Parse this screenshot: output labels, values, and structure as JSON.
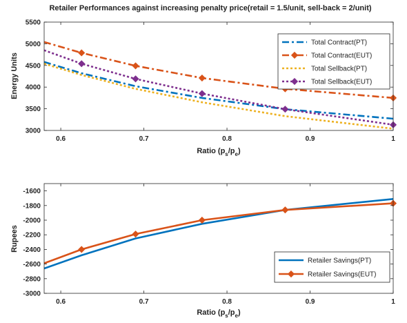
{
  "title": "Retailer Performances against increasing penalty price(retail = 1.5/unit, sell-back = 2/unit)",
  "chart_data": [
    {
      "type": "line",
      "title": "Retailer Performances against increasing penalty price(retail = 1.5/unit, sell-back = 2/unit)",
      "xlabel_main": "Ratio (p",
      "xlabel_sub1": "s",
      "xlabel_sep": "/p",
      "xlabel_sub2": "e",
      "xlabel_close": ")",
      "ylabel": "Energy Units",
      "xlim": [
        0.58,
        1.0
      ],
      "ylim": [
        3000,
        5500
      ],
      "xticks": [
        0.6,
        0.7,
        0.8,
        0.9,
        1.0
      ],
      "xtick_labels": [
        "0.6",
        "0.7",
        "0.8",
        "0.9",
        "1"
      ],
      "yticks": [
        3000,
        3500,
        4000,
        4500,
        5000,
        5500
      ],
      "ytick_labels": [
        "3000",
        "3500",
        "4000",
        "4500",
        "5000",
        "5500"
      ],
      "legend_placement": "top-right",
      "grid": false,
      "series": [
        {
          "name": "Total Contract(PT)",
          "color": "#0072BD",
          "dash": "10,4,3,4",
          "marker": "none",
          "x": [
            0.58,
            0.625,
            0.69,
            0.77,
            0.87,
            1.0
          ],
          "y": [
            4580,
            4320,
            4020,
            3750,
            3490,
            3270
          ]
        },
        {
          "name": "Total Contract(EUT)",
          "color": "#D95319",
          "dash": "10,4,3,4",
          "marker": "diamond",
          "x": [
            0.58,
            0.625,
            0.69,
            0.77,
            0.87,
            1.0
          ],
          "y": [
            5040,
            4790,
            4490,
            4210,
            3960,
            3750
          ]
        },
        {
          "name": "Total Sellback(PT)",
          "color": "#EDB120",
          "dash": "3,3",
          "marker": "none",
          "x": [
            0.58,
            0.625,
            0.69,
            0.77,
            0.87,
            1.0
          ],
          "y": [
            4540,
            4280,
            3960,
            3650,
            3330,
            3040
          ]
        },
        {
          "name": "Total Sellback(EUT)",
          "color": "#7E2F8E",
          "dash": "3,3",
          "marker": "diamond",
          "x": [
            0.58,
            0.625,
            0.69,
            0.77,
            0.87,
            1.0
          ],
          "y": [
            4850,
            4540,
            4190,
            3850,
            3490,
            3130
          ]
        }
      ]
    },
    {
      "type": "line",
      "xlabel_main": "Ratio (p",
      "xlabel_sub1": "s",
      "xlabel_sep": "/p",
      "xlabel_sub2": "e",
      "xlabel_close": ")",
      "ylabel": "Rupees",
      "xlim": [
        0.58,
        1.0
      ],
      "ylim": [
        -3000,
        -1500
      ],
      "xticks": [
        0.6,
        0.7,
        0.8,
        0.9,
        1.0
      ],
      "xtick_labels": [
        "0.6",
        "0.7",
        "0.8",
        "0.9",
        "1"
      ],
      "yticks": [
        -3000,
        -2800,
        -2600,
        -2400,
        -2200,
        -2000,
        -1800,
        -1600
      ],
      "ytick_labels": [
        "-3000",
        "-2800",
        "-2600",
        "-2400",
        "-2200",
        "-2000",
        "-1800",
        "-1600"
      ],
      "legend_placement": "bottom-right",
      "grid": false,
      "series": [
        {
          "name": "Retailer Savings(PT)",
          "color": "#0072BD",
          "dash": "",
          "marker": "none",
          "x": [
            0.58,
            0.625,
            0.69,
            0.77,
            0.87,
            1.0
          ],
          "y": [
            -2660,
            -2480,
            -2250,
            -2050,
            -1860,
            -1710
          ]
        },
        {
          "name": "Retailer Savings(EUT)",
          "color": "#D95319",
          "dash": "",
          "marker": "diamond",
          "x": [
            0.58,
            0.625,
            0.69,
            0.77,
            0.87,
            1.0
          ],
          "y": [
            -2590,
            -2400,
            -2190,
            -2000,
            -1860,
            -1770
          ]
        }
      ]
    }
  ]
}
